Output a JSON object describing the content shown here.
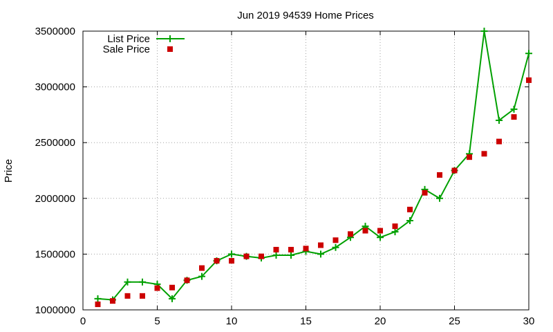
{
  "chart_data": {
    "type": "line",
    "title": "Jun 2019 94539 Home Prices",
    "xlabel": "",
    "ylabel": "Price",
    "xlim": [
      0,
      30
    ],
    "ylim": [
      1000000,
      3500000
    ],
    "xticks": [
      0,
      5,
      10,
      15,
      20,
      25,
      30
    ],
    "yticks": [
      1000000,
      1500000,
      2000000,
      2500000,
      3000000,
      3500000
    ],
    "grid": true,
    "legend_position": "top-left",
    "x": [
      1,
      2,
      3,
      4,
      5,
      6,
      7,
      8,
      9,
      10,
      11,
      12,
      13,
      14,
      15,
      16,
      17,
      18,
      19,
      20,
      21,
      22,
      23,
      24,
      25,
      26,
      27,
      28,
      29,
      30
    ],
    "series": [
      {
        "name": "List Price",
        "style": "line-plus",
        "color": "#00a000",
        "values": [
          1100000,
          1090000,
          1250000,
          1250000,
          1230000,
          1100000,
          1265000,
          1300000,
          1440000,
          1500000,
          1480000,
          1465000,
          1490000,
          1490000,
          1525000,
          1500000,
          1560000,
          1650000,
          1750000,
          1650000,
          1700000,
          1800000,
          2080000,
          2000000,
          2250000,
          2400000,
          3500000,
          2700000,
          2800000,
          3300000
        ]
      },
      {
        "name": "Sale Price",
        "style": "square",
        "color": "#cc0000",
        "values": [
          1050000,
          1080000,
          1125000,
          1125000,
          1195000,
          1200000,
          1265000,
          1375000,
          1440000,
          1440000,
          1480000,
          1480000,
          1540000,
          1540000,
          1550000,
          1580000,
          1625000,
          1680000,
          1710000,
          1710000,
          1750000,
          1900000,
          2050000,
          2210000,
          2250000,
          2370000,
          2400000,
          2510000,
          2730000,
          3060000
        ]
      }
    ]
  }
}
